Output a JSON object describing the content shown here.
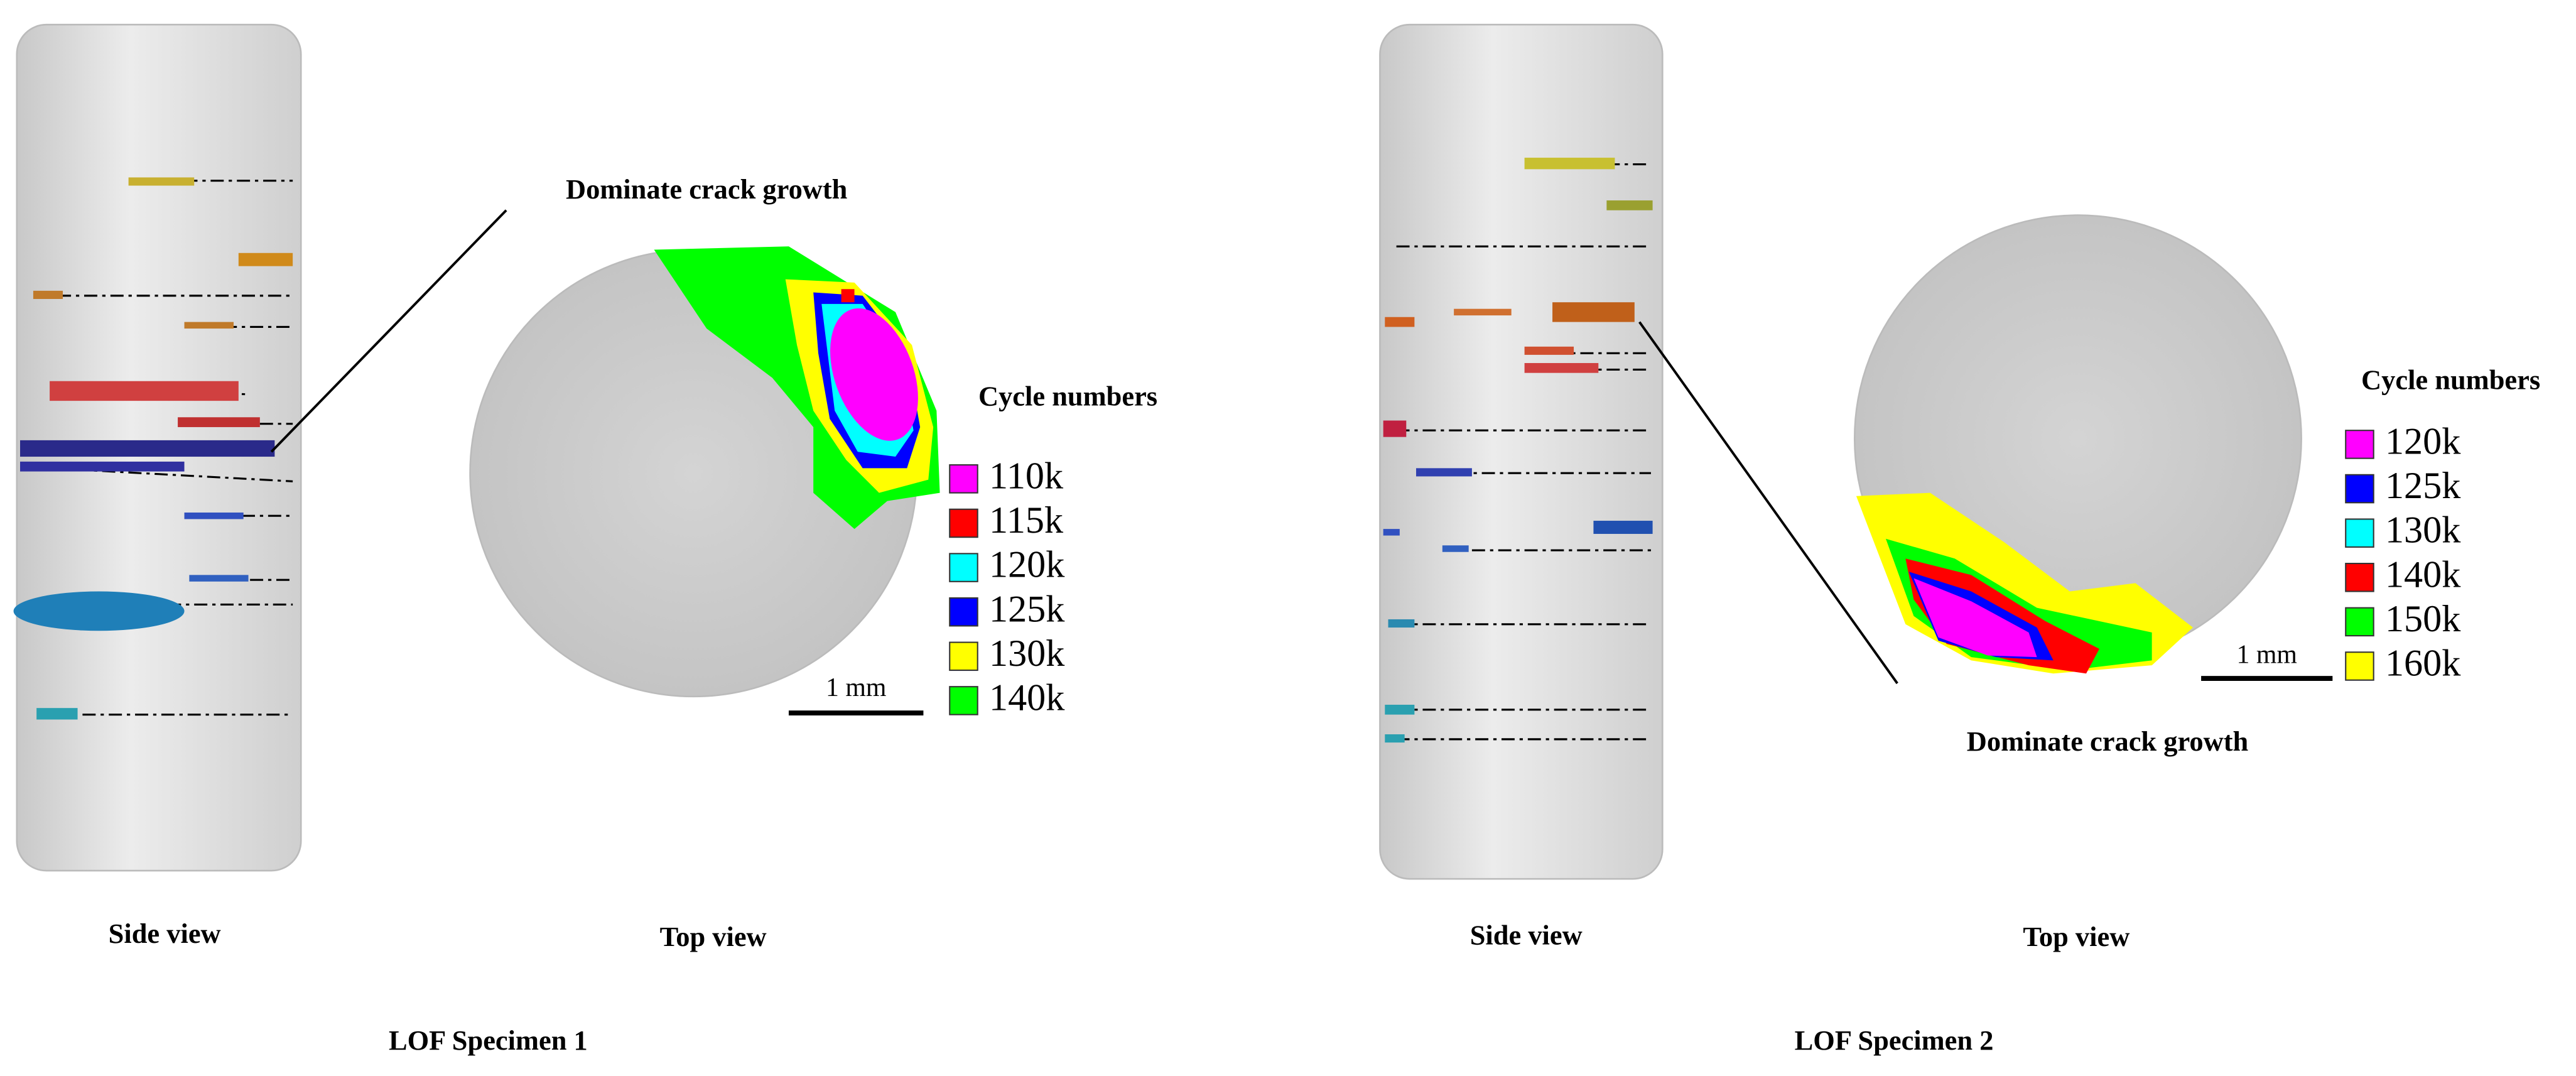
{
  "specimens": [
    {
      "title": "LOF Specimen 1",
      "side_view_label": "Side view",
      "top_view_label": "Top view",
      "annotation": "Dominate crack growth",
      "legend_title": "Cycle numbers",
      "scale_bar": "1 mm",
      "legend": [
        {
          "label": "110k",
          "color": "#ff00ff"
        },
        {
          "label": "115k",
          "color": "#ff0000"
        },
        {
          "label": "120k",
          "color": "#00ffff"
        },
        {
          "label": "125k",
          "color": "#0000ff"
        },
        {
          "label": "130k",
          "color": "#ffff00"
        },
        {
          "label": "140k",
          "color": "#00ff00"
        }
      ]
    },
    {
      "title": "LOF Specimen  2",
      "side_view_label": "Side view",
      "top_view_label": "Top view",
      "annotation": "Dominate crack growth",
      "legend_title": "Cycle numbers",
      "scale_bar": "1 mm",
      "legend": [
        {
          "label": "120k",
          "color": "#ff00ff"
        },
        {
          "label": "125k",
          "color": "#0000ff"
        },
        {
          "label": "130k",
          "color": "#00ffff"
        },
        {
          "label": "140k",
          "color": "#ff0000"
        },
        {
          "label": "150k",
          "color": "#00ff00"
        },
        {
          "label": "160k",
          "color": "#ffff00"
        }
      ]
    }
  ]
}
